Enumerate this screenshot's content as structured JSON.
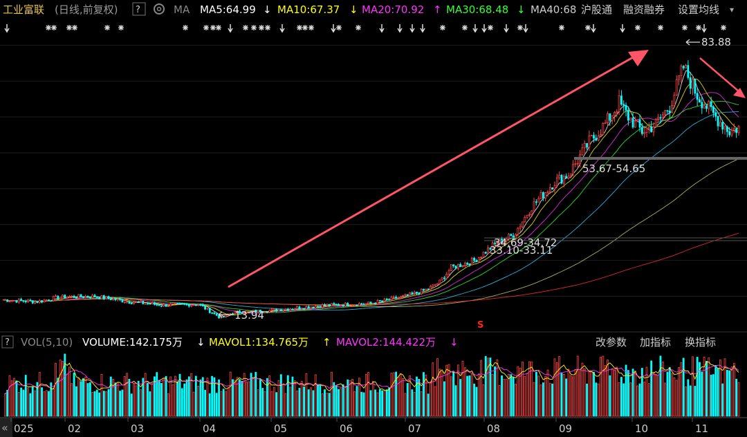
{
  "header": {
    "stock_name": "工业富联",
    "period_note": "(日线,前复权)",
    "help": "?",
    "ma_label": "MA",
    "ma_items": [
      {
        "text": "MA5:64.99",
        "arrow": "↓",
        "color": "#ffffff"
      },
      {
        "text": "MA10:67.37",
        "arrow": "↓",
        "color": "#ffff00"
      },
      {
        "text": "MA20:70.92",
        "arrow": "↑",
        "color": "#ff33ff"
      },
      {
        "text": "MA30:68.48",
        "arrow": "↓",
        "color": "#33ff33"
      },
      {
        "text": "MA40:68",
        "arrow": "",
        "color": "#cccccc"
      }
    ],
    "right_links": [
      "沪股通",
      "融资融券",
      "设置均线"
    ],
    "dropdown_caret": "▾"
  },
  "price_panel": {
    "high_label": "83.88",
    "low_label": "13.94",
    "support_labels": [
      "53.67-54.65",
      "34.69-34.72",
      "33.10-33.11"
    ],
    "marker_s": "S"
  },
  "volume_panel": {
    "help": "?",
    "title": "VOL(5,10)",
    "volume_text": "VOLUME:142.175万",
    "volume_arrow": "↓",
    "mavol1_text": "MAVOL1:134.765万",
    "mavol1_arrow": "↑",
    "mavol2_text": "MAVOL2:144.422万",
    "mavol2_arrow": "↓",
    "buttons": [
      "改参数",
      "加指标",
      "换指标"
    ]
  },
  "x_axis": {
    "nav_icon": "«",
    "labels": [
      "025",
      "02",
      "03",
      "04",
      "05",
      "06",
      "07",
      "08",
      "09",
      "10",
      "11"
    ]
  },
  "colors": {
    "up": "#ff4444",
    "down": "#00ffff",
    "ma5": "#ffffff",
    "ma10": "#ffff00",
    "ma20": "#ff33ff",
    "ma30": "#33ff33",
    "ma60": "#33ccff",
    "ma120": "#cccc66",
    "ma250": "#ff3333",
    "arrow": "#ff5566",
    "header_text": "#e6c34a"
  },
  "chart_data": {
    "type": "candlestick",
    "y_range": [
      12,
      92
    ],
    "note_high": 83.88,
    "note_low": 13.94,
    "support_zones": [
      [
        53.67,
        54.65
      ],
      [
        34.69,
        34.72
      ],
      [
        33.1,
        33.11
      ]
    ]
  }
}
